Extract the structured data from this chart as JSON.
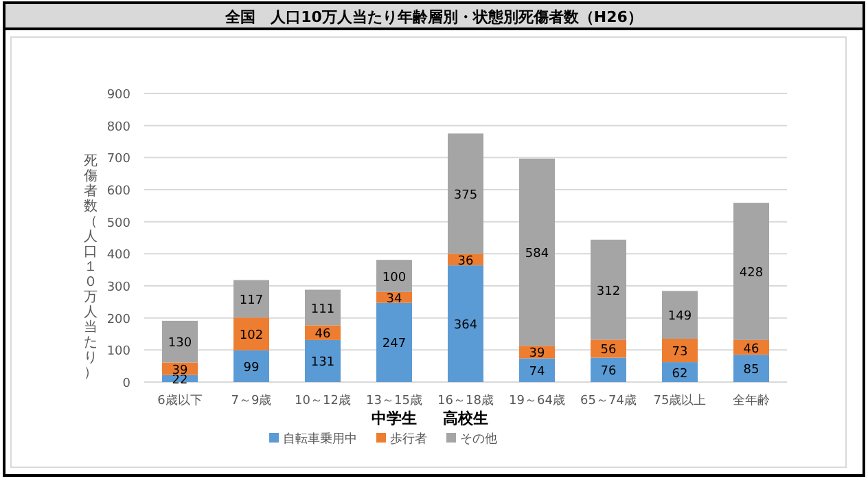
{
  "chart_data": {
    "type": "bar",
    "stacked": true,
    "title": "全国　人口10万人当たり年齢層別・状態別死傷者数（H26）",
    "ylabel": "死傷者数（人口１０万人当たり）",
    "categories": [
      "6歳以下",
      "7～9歳",
      "10～12歳",
      "13～15歳",
      "16～18歳",
      "19～64歳",
      "65～74歳",
      "75歳以上",
      "全年齢"
    ],
    "series": [
      {
        "name": "自転車乗用中",
        "color": "#5b9bd5",
        "values": [
          22,
          99,
          131,
          247,
          364,
          74,
          76,
          62,
          85
        ]
      },
      {
        "name": "歩行者",
        "color": "#ed7d31",
        "values": [
          39,
          102,
          46,
          34,
          36,
          39,
          56,
          73,
          46
        ]
      },
      {
        "name": "その他",
        "color": "#a5a5a5",
        "values": [
          130,
          117,
          111,
          100,
          375,
          584,
          312,
          149,
          428
        ]
      }
    ],
    "ylim": [
      0,
      900
    ],
    "yticks": [
      0,
      100,
      200,
      300,
      400,
      500,
      600,
      700,
      800,
      900
    ],
    "grid": "y",
    "data_labels": true,
    "legend": "bottom",
    "annotations": [
      "中学生",
      "高校生"
    ]
  }
}
